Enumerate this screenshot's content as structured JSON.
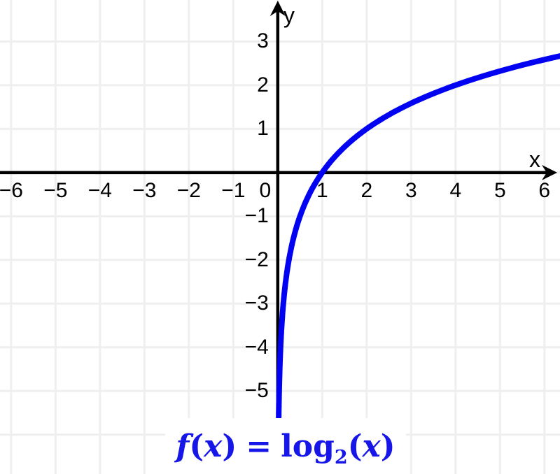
{
  "chart_data": {
    "type": "line",
    "title": "",
    "x_axis_label": "x",
    "y_axis_label": "y",
    "xlim": [
      -6.25,
      6.35
    ],
    "ylim": [
      -6.9,
      3.95
    ],
    "grid": true,
    "x_tick_values": [
      -6,
      -5,
      -4,
      -3,
      -2,
      -1,
      0,
      1,
      2,
      3,
      4,
      5,
      6
    ],
    "x_tick_labels": [
      "−6",
      "−5",
      "−4",
      "−3",
      "−2",
      "−1",
      "0",
      "1",
      "2",
      "3",
      "4",
      "5",
      "6"
    ],
    "y_tick_values": [
      3,
      2,
      1,
      -1,
      -2,
      -3,
      -4,
      -5
    ],
    "y_tick_labels": [
      "3",
      "2",
      "1",
      "−1",
      "−2",
      "−3",
      "−4",
      "−5"
    ],
    "series": [
      {
        "name": "f",
        "expression": "log2(x)",
        "domain": [
          0.0206,
          6.35
        ],
        "key_points": [
          [
            0.125,
            -3
          ],
          [
            0.25,
            -2
          ],
          [
            0.5,
            -1
          ],
          [
            1,
            0
          ],
          [
            2,
            1
          ],
          [
            4,
            2
          ],
          [
            6.35,
            2.67
          ]
        ]
      }
    ],
    "colors": {
      "curve": "#0202f2",
      "axis": "#000000",
      "grid": "#efefef",
      "tick_text": "#000000",
      "formula": "#1616e8",
      "background": "#ffffff"
    },
    "curve_stroke_width": 8,
    "axis_stroke_width": 4.5,
    "grid_stroke_width": 3
  },
  "formula": {
    "f": "f",
    "open1": "(",
    "x1": "x",
    "close1": ")",
    "equals": "=",
    "func": "log",
    "base": "2",
    "open2": "(",
    "x2": "x",
    "close2": ")"
  }
}
